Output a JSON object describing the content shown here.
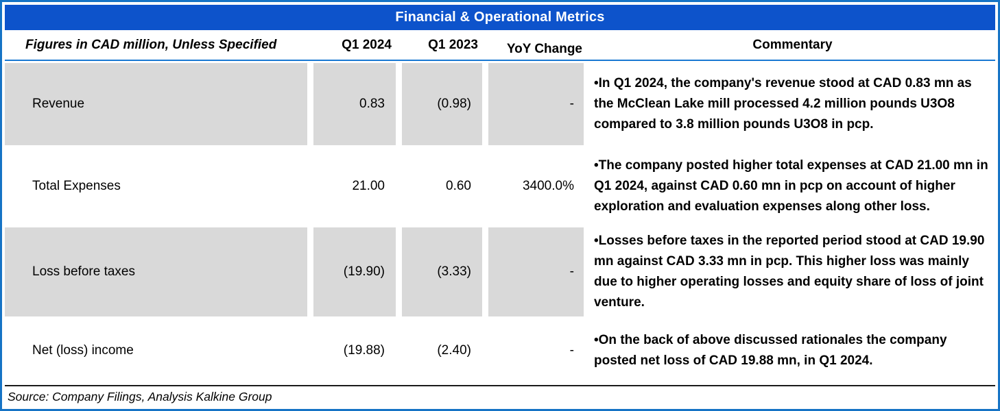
{
  "title": "Financial & Operational Metrics",
  "columns": {
    "label": "Figures in CAD million, Unless Specified",
    "q1_2024": "Q1 2024",
    "q1_2023": "Q1 2023",
    "yoy": "YoY Change",
    "commentary": "Commentary"
  },
  "rows": [
    {
      "label": "Revenue",
      "q1_2024": "0.83",
      "q1_2023": "(0.98)",
      "yoy": "-",
      "commentary": "•In Q1 2024, the company's revenue stood at CAD 0.83 mn as the McClean Lake mill processed 4.2 million pounds U3O8 compared to 3.8 million pounds U3O8 in pcp."
    },
    {
      "label": "Total Expenses",
      "q1_2024": "21.00",
      "q1_2023": "0.60",
      "yoy": "3400.0%",
      "commentary": "•The company posted higher total expenses at CAD 21.00 mn in Q1 2024, against CAD 0.60 mn in pcp on account of higher exploration and evaluation expenses along other loss."
    },
    {
      "label": "Loss before taxes",
      "q1_2024": "(19.90)",
      "q1_2023": "(3.33)",
      "yoy": "-",
      "commentary": "•Losses before taxes in the reported period stood at CAD 19.90 mn against CAD 3.33 mn in pcp. This higher loss was mainly due to higher operating losses and equity share of loss of joint venture."
    },
    {
      "label": "Net (loss) income",
      "q1_2024": "(19.88)",
      "q1_2023": "(2.40)",
      "yoy": "-",
      "commentary": "•On the back of above discussed rationales the company posted net loss of CAD 19.88 mn, in Q1 2024."
    }
  ],
  "source": "Source: Company Filings, Analysis Kalkine Group",
  "colors": {
    "title_bar": "#0d53cb",
    "border": "#1673c5",
    "header_rule": "#1878d2",
    "row_shade": "#d9d9d9",
    "text": "#000000"
  }
}
